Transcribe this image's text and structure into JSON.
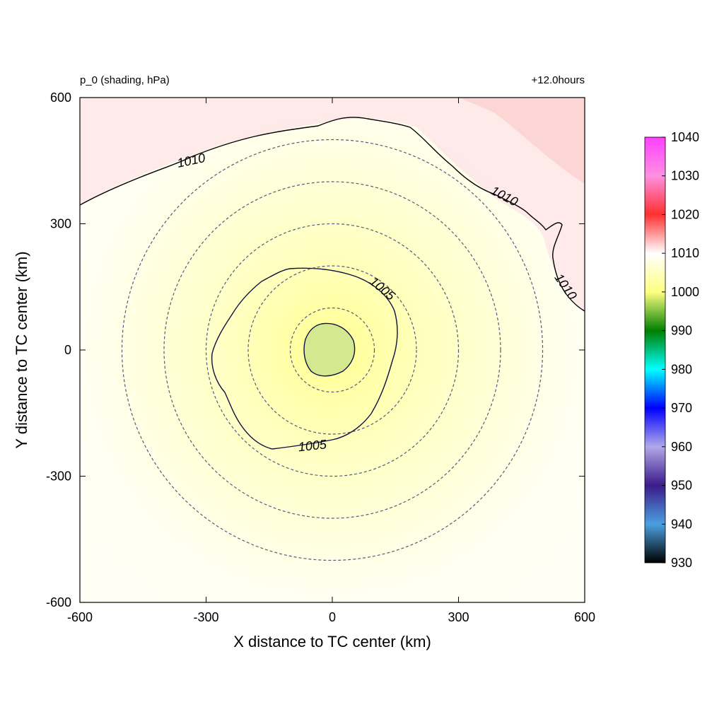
{
  "chart_data": {
    "type": "heatmap",
    "title_left": "p_0 (shading, hPa)",
    "title_right": "+12.0hours",
    "xlabel": "X distance to TC center (km)",
    "ylabel": "Y distance to TC center (km)",
    "xlim": [
      -600,
      600
    ],
    "ylim": [
      -600,
      600
    ],
    "xticks": [
      -600,
      -300,
      0,
      300,
      600
    ],
    "yticks": [
      -600,
      -300,
      0,
      300,
      600
    ],
    "xtick_labels": [
      "-600",
      "-300",
      "0",
      "300",
      "600"
    ],
    "ytick_labels": [
      "-600",
      "-300",
      "0",
      "300",
      "600"
    ],
    "colorbar": {
      "min": 930,
      "max": 1040,
      "ticks": [
        930,
        940,
        950,
        960,
        970,
        980,
        990,
        1000,
        1010,
        1020,
        1030,
        1040
      ],
      "tick_labels": [
        "930",
        "940",
        "950",
        "960",
        "970",
        "980",
        "990",
        "1000",
        "1010",
        "1020",
        "1030",
        "1040"
      ],
      "stops": [
        {
          "value": 930,
          "color": "#000000"
        },
        {
          "value": 940,
          "color": "#4aa0e0"
        },
        {
          "value": 950,
          "color": "#3c1a8a"
        },
        {
          "value": 960,
          "color": "#b0a8e8"
        },
        {
          "value": 970,
          "color": "#0000ff"
        },
        {
          "value": 980,
          "color": "#00ffff"
        },
        {
          "value": 990,
          "color": "#008000"
        },
        {
          "value": 1000,
          "color": "#ffff80"
        },
        {
          "value": 1010,
          "color": "#ffffff"
        },
        {
          "value": 1020,
          "color": "#ff3030"
        },
        {
          "value": 1030,
          "color": "#ff90e0"
        },
        {
          "value": 1040,
          "color": "#ff40ff"
        }
      ]
    },
    "center_pressure": 1001,
    "field": {
      "description_values": [
        {
          "r_km": 0,
          "value": 1001
        },
        {
          "r_km": 60,
          "value": 1002.5
        },
        {
          "r_km": 200,
          "value": 1005
        },
        {
          "r_km": 500,
          "value": 1009
        }
      ]
    },
    "contours": [
      {
        "level": 1005,
        "label": "1005"
      },
      {
        "level": 1010,
        "label": "1010"
      }
    ],
    "range_rings_km": [
      100,
      200,
      300,
      400,
      500
    ]
  }
}
